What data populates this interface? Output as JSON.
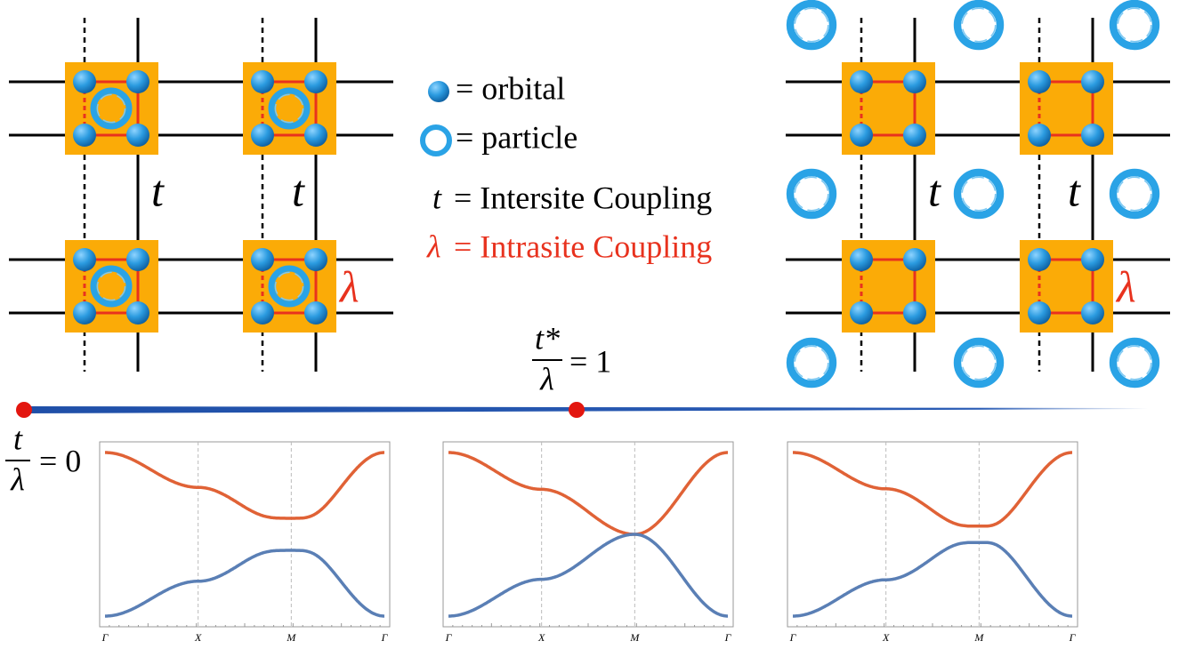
{
  "legend": {
    "orbital": "= orbital",
    "particle": "= particle",
    "intersite": {
      "symbol": "t",
      "text": "= Intersite Coupling"
    },
    "intrasite": {
      "symbol": "λ",
      "text": "= Intrasite Coupling"
    }
  },
  "left_lattice": {
    "hopping_labels": [
      "t",
      "t"
    ],
    "intrasite_label": "λ"
  },
  "right_lattice": {
    "hopping_labels": [
      "t",
      "t"
    ],
    "intrasite_label": "λ"
  },
  "phase_axis": {
    "start": {
      "numerator": "t",
      "denominator": "λ",
      "value_text": "= 0"
    },
    "critical": {
      "numerator": "t*",
      "denominator": "λ",
      "value_text": "= 1"
    }
  },
  "band_plots": [
    {
      "k_labels": [
        "Γ",
        "X",
        "M",
        "Γ"
      ]
    },
    {
      "k_labels": [
        "Γ",
        "X",
        "M",
        "Γ"
      ]
    },
    {
      "k_labels": [
        "Γ",
        "X",
        "M",
        "Γ"
      ]
    }
  ]
}
